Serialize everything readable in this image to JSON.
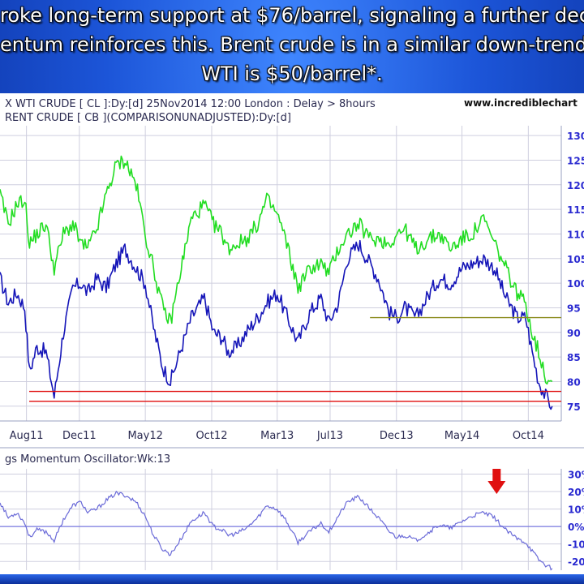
{
  "caption": {
    "line1": "roke long-term support at $76/barrel, signaling a further dec",
    "line2": "entum reinforces this. Brent crude is in a similar down-trend.",
    "line3": "WTI is $50/barrel*."
  },
  "chart_header": {
    "line1": "X WTI CRUDE [ CL ]:Dy:[d]  25Nov2014 12:00 London : Delay > 8hours",
    "line2": "RENT CRUDE [ CB ](COMPARISONUNADJUSTED):Dy:[d]",
    "site": "www.incrediblechart"
  },
  "oscillator_header": "gs Momentum Oscillator:Wk:13",
  "colors": {
    "wti": "#1515b8",
    "brent": "#22dd22",
    "support": "#e01010",
    "resistance": "#8a8a1a",
    "oscillator": "#6a6ad8",
    "grid": "#cfcfdf",
    "axis_text": "#2a2ad0",
    "arrow": "#e01010"
  },
  "chart_data": [
    {
      "type": "line",
      "xlabel": "",
      "ylabel": "",
      "x_ticks": [
        "Aug11",
        "Dec11",
        "May12",
        "Oct12",
        "Mar13",
        "Jul13",
        "Dec13",
        "May14",
        "Oct14"
      ],
      "y_ticks": [
        "130",
        "125",
        "120",
        "115",
        "110",
        "105",
        "100",
        "95",
        "90",
        "85",
        "80",
        "75"
      ],
      "ylim": [
        72,
        132
      ],
      "grid": true,
      "series": [
        {
          "name": "",
          "x": [
            "2011-06-01",
            "2011-06-20",
            "2011-07-10",
            "2011-07-28",
            "2011-08-08",
            "2011-08-25",
            "2011-09-15",
            "2011-10-04",
            "2011-10-25",
            "2011-11-16",
            "2011-12-05",
            "2011-12-20",
            "2012-01-10",
            "2012-02-01",
            "2012-02-24",
            "2012-03-15",
            "2012-04-10",
            "2012-05-01",
            "2012-05-20",
            "2012-06-10",
            "2012-06-28",
            "2012-07-20",
            "2012-08-15",
            "2012-09-14",
            "2012-10-05",
            "2012-10-25",
            "2012-11-08",
            "2012-11-28",
            "2012-12-20",
            "2013-01-15",
            "2013-02-05",
            "2013-03-01",
            "2013-03-20",
            "2013-04-18",
            "2013-05-15",
            "2013-06-10",
            "2013-06-28",
            "2013-07-20",
            "2013-08-10",
            "2013-09-05",
            "2013-10-01",
            "2013-10-20",
            "2013-11-15",
            "2013-12-01",
            "2013-12-20",
            "2014-01-15",
            "2014-02-15",
            "2014-03-10",
            "2014-04-05",
            "2014-05-01",
            "2014-05-25",
            "2014-06-20",
            "2014-07-15",
            "2014-08-10",
            "2014-09-05",
            "2014-09-25",
            "2014-10-10",
            "2014-10-25",
            "2014-11-10",
            "2014-11-25"
          ],
          "values": [
            101,
            96,
            98,
            95,
            82,
            87,
            86,
            77,
            90,
            99,
            100,
            98,
            101,
            99,
            104,
            107,
            103,
            100,
            91,
            83,
            80,
            86,
            93,
            97,
            90,
            89,
            86,
            87,
            90,
            93,
            96,
            98,
            94,
            88,
            94,
            97,
            92,
            96,
            105,
            108,
            104,
            101,
            94,
            93,
            95,
            93,
            98,
            101,
            100,
            103,
            104,
            105,
            103,
            97,
            93,
            93,
            86,
            80,
            77,
            75
          ]
        },
        {
          "name": "",
          "x": [
            "2011-06-01",
            "2011-06-20",
            "2011-07-10",
            "2011-07-28",
            "2011-08-08",
            "2011-08-25",
            "2011-09-15",
            "2011-10-04",
            "2011-10-25",
            "2011-11-16",
            "2011-12-05",
            "2011-12-20",
            "2012-01-10",
            "2012-02-01",
            "2012-02-24",
            "2012-03-15",
            "2012-04-10",
            "2012-05-01",
            "2012-05-20",
            "2012-06-10",
            "2012-06-28",
            "2012-07-20",
            "2012-08-15",
            "2012-09-14",
            "2012-10-05",
            "2012-10-25",
            "2012-11-08",
            "2012-11-28",
            "2012-12-20",
            "2013-01-15",
            "2013-02-05",
            "2013-03-01",
            "2013-03-20",
            "2013-04-18",
            "2013-05-15",
            "2013-06-10",
            "2013-06-28",
            "2013-07-20",
            "2013-08-10",
            "2013-09-05",
            "2013-10-01",
            "2013-10-20",
            "2013-11-15",
            "2013-12-01",
            "2013-12-20",
            "2014-01-15",
            "2014-02-15",
            "2014-03-10",
            "2014-04-05",
            "2014-05-01",
            "2014-05-25",
            "2014-06-20",
            "2014-07-15",
            "2014-08-10",
            "2014-09-05",
            "2014-09-25",
            "2014-10-10",
            "2014-10-25",
            "2014-11-10",
            "2014-11-25"
          ],
          "values": [
            118,
            112,
            116,
            117,
            108,
            110,
            112,
            103,
            110,
            112,
            108,
            107,
            111,
            118,
            124,
            125,
            120,
            110,
            103,
            95,
            92,
            102,
            113,
            116,
            112,
            110,
            107,
            108,
            109,
            112,
            117,
            114,
            109,
            99,
            103,
            104,
            102,
            107,
            110,
            112,
            109,
            109,
            108,
            110,
            111,
            107,
            109,
            110,
            107,
            109,
            110,
            113,
            108,
            103,
            98,
            96,
            90,
            86,
            81,
            80
          ]
        }
      ],
      "annotations": [
        {
          "type": "hline",
          "color": "support",
          "y": 78
        },
        {
          "type": "hline",
          "color": "support",
          "y": 76
        },
        {
          "type": "hline",
          "color": "resistance",
          "y": 93,
          "x_start": "2013-10-01"
        }
      ]
    },
    {
      "type": "line",
      "xlabel": "",
      "ylabel": "",
      "y_ticks": [
        "30%",
        "20%",
        "10%",
        "0%",
        "-10",
        "-20"
      ],
      "ylim": [
        -25,
        33
      ],
      "grid": true,
      "series": [
        {
          "name": "",
          "x": [
            "2011-06-01",
            "2011-06-20",
            "2011-07-10",
            "2011-07-28",
            "2011-08-08",
            "2011-08-25",
            "2011-09-15",
            "2011-10-04",
            "2011-10-25",
            "2011-11-16",
            "2011-12-05",
            "2011-12-20",
            "2012-01-10",
            "2012-02-01",
            "2012-02-24",
            "2012-03-15",
            "2012-04-10",
            "2012-05-01",
            "2012-05-20",
            "2012-06-10",
            "2012-06-28",
            "2012-07-20",
            "2012-08-15",
            "2012-09-14",
            "2012-10-05",
            "2012-10-25",
            "2012-11-08",
            "2012-11-28",
            "2012-12-20",
            "2013-01-15",
            "2013-02-05",
            "2013-03-01",
            "2013-03-20",
            "2013-04-18",
            "2013-05-15",
            "2013-06-10",
            "2013-06-28",
            "2013-07-20",
            "2013-08-10",
            "2013-09-05",
            "2013-10-01",
            "2013-10-20",
            "2013-11-15",
            "2013-12-01",
            "2013-12-20",
            "2014-01-15",
            "2014-02-15",
            "2014-03-10",
            "2014-04-05",
            "2014-05-01",
            "2014-05-25",
            "2014-06-20",
            "2014-07-15",
            "2014-08-10",
            "2014-09-05",
            "2014-09-25",
            "2014-10-10",
            "2014-10-25",
            "2014-11-10",
            "2014-11-25"
          ],
          "values": [
            14,
            5,
            8,
            2,
            -6,
            -2,
            -3,
            -8,
            4,
            12,
            14,
            8,
            10,
            15,
            19,
            18,
            14,
            6,
            -5,
            -13,
            -16,
            -8,
            3,
            8,
            0,
            -2,
            -5,
            -4,
            -1,
            5,
            12,
            10,
            4,
            -9,
            -3,
            2,
            -3,
            6,
            14,
            17,
            10,
            5,
            -3,
            -6,
            -5,
            -8,
            -3,
            1,
            -1,
            3,
            6,
            8,
            5,
            -2,
            -7,
            -9,
            -14,
            -19,
            -22,
            -24
          ]
        }
      ],
      "annotations": [
        {
          "type": "arrow-down",
          "color": "arrow",
          "x": "2014-07-20"
        }
      ]
    }
  ]
}
